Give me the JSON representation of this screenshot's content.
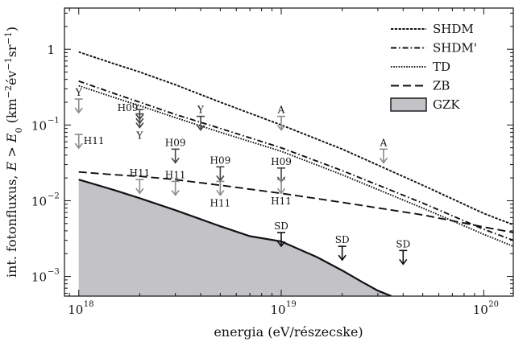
{
  "chart_data": {
    "type": "line",
    "xlabel": "energia (eV/részecske)",
    "ylabel": "int. fotonfluxus, E > E₀ (km⁻²év⁻¹sr⁻¹)",
    "x_scale": "log",
    "y_scale": "log",
    "xlim": [
      8.5e+17,
      1.4e+20
    ],
    "ylim": [
      0.00055,
      3.5
    ],
    "x_ticks": [
      {
        "value": 1e+18,
        "mantissa": "10",
        "exp": "18"
      },
      {
        "value": 1e+19,
        "mantissa": "10",
        "exp": "19"
      },
      {
        "value": 1e+20,
        "mantissa": "10",
        "exp": "20"
      }
    ],
    "y_ticks": [
      {
        "value": 1,
        "label": "1"
      },
      {
        "value": 0.1,
        "label": "10",
        "exp": "−1"
      },
      {
        "value": 0.01,
        "label": "10",
        "exp": "−2"
      },
      {
        "value": 0.001,
        "label": "10",
        "exp": "−3"
      }
    ],
    "legend_position": "top-right",
    "series": [
      {
        "name": "SHDM",
        "style": "dotted-dense",
        "x": [
          1e+18,
          1.5e+18,
          2e+18,
          3e+18,
          5e+18,
          1e+19,
          2e+19,
          5e+19,
          1e+20,
          1.4e+20
        ],
        "y": [
          0.92,
          0.64,
          0.5,
          0.34,
          0.2,
          0.1,
          0.048,
          0.016,
          0.0068,
          0.0048
        ]
      },
      {
        "name": "SHDM'",
        "style": "dashdot",
        "x": [
          1e+18,
          1.5e+18,
          2e+18,
          3e+18,
          5e+18,
          1e+19,
          2e+19,
          5e+19,
          1e+20,
          1.4e+20
        ],
        "y": [
          0.38,
          0.26,
          0.2,
          0.138,
          0.09,
          0.05,
          0.025,
          0.0093,
          0.0042,
          0.003
        ]
      },
      {
        "name": "TD",
        "style": "dotted",
        "x": [
          1e+18,
          1.5e+18,
          2e+18,
          3e+18,
          5e+18,
          1e+19,
          2e+19,
          5e+19,
          1e+20,
          1.4e+20
        ],
        "y": [
          0.33,
          0.23,
          0.18,
          0.125,
          0.08,
          0.045,
          0.022,
          0.008,
          0.0036,
          0.0025
        ]
      },
      {
        "name": "ZB",
        "style": "dashed",
        "x": [
          1e+18,
          1.5e+18,
          2e+18,
          3e+18,
          5e+18,
          1e+19,
          2e+19,
          5e+19,
          1e+20,
          1.4e+20
        ],
        "y": [
          0.024,
          0.022,
          0.021,
          0.019,
          0.016,
          0.0125,
          0.0095,
          0.0065,
          0.0045,
          0.0038
        ]
      },
      {
        "name": "GZK",
        "style": "filled",
        "x": [
          1e+18,
          1.5e+18,
          2e+18,
          3e+18,
          5e+18,
          7e+18,
          1e+19,
          1.5e+19,
          2e+19,
          2.5e+19,
          3e+19,
          3.5e+19
        ],
        "y": [
          0.019,
          0.0138,
          0.0108,
          0.0075,
          0.0046,
          0.0034,
          0.0029,
          0.0018,
          0.0012,
          0.00085,
          0.00065,
          0.00055
        ]
      }
    ],
    "upper_limits": [
      {
        "label": "Y",
        "x": 1e+18,
        "y": 0.22,
        "label_pos": "above",
        "color": "#8a8a8a",
        "double": false
      },
      {
        "label": "H11",
        "x": 1e+18,
        "y": 0.075,
        "label_pos": "right",
        "color": "#8a8a8a",
        "double": false
      },
      {
        "label": "H09",
        "x": 2e+18,
        "y": 0.16,
        "label_pos": "left",
        "color": "#444444",
        "double": true
      },
      {
        "label": "Y",
        "x": 2e+18,
        "y": 0.14,
        "label_pos": "below",
        "color": "#444444",
        "double": false
      },
      {
        "label": "H11",
        "x": 2e+18,
        "y": 0.019,
        "label_pos": "above",
        "color": "#8a8a8a",
        "double": false
      },
      {
        "label": "H09",
        "x": 3e+18,
        "y": 0.048,
        "label_pos": "above",
        "color": "#444444",
        "double": false
      },
      {
        "label": "H11",
        "x": 3e+18,
        "y": 0.018,
        "label_pos": "above",
        "color": "#8a8a8a",
        "double": false
      },
      {
        "label": "Y",
        "x": 4e+18,
        "y": 0.13,
        "label_pos": "above",
        "color": "#444444",
        "double": false
      },
      {
        "label": "H09",
        "x": 5e+18,
        "y": 0.028,
        "label_pos": "above",
        "color": "#444444",
        "double": false
      },
      {
        "label": "H11",
        "x": 5e+18,
        "y": 0.018,
        "label_pos": "below",
        "color": "#8a8a8a",
        "double": false
      },
      {
        "label": "H09",
        "x": 1e+19,
        "y": 0.027,
        "label_pos": "above",
        "color": "#444444",
        "double": false
      },
      {
        "label": "H11",
        "x": 1e+19,
        "y": 0.019,
        "label_pos": "below",
        "color": "#8a8a8a",
        "double": false
      },
      {
        "label": "A",
        "x": 1e+19,
        "y": 0.13,
        "label_pos": "above",
        "color": "#8a8a8a",
        "double": false
      },
      {
        "label": "A",
        "x": 3.2e+19,
        "y": 0.048,
        "label_pos": "above",
        "color": "#8a8a8a",
        "double": false
      },
      {
        "label": "SD",
        "x": 1e+19,
        "y": 0.0038,
        "label_pos": "above",
        "color": "#111111",
        "double": false
      },
      {
        "label": "SD",
        "x": 2e+19,
        "y": 0.0025,
        "label_pos": "above",
        "color": "#111111",
        "double": false
      },
      {
        "label": "SD",
        "x": 4e+19,
        "y": 0.0022,
        "label_pos": "above",
        "color": "#111111",
        "double": false
      }
    ],
    "colors": {
      "line": "#111111",
      "gzk_fill": "#c3c3c7",
      "limit_dark": "#444444",
      "limit_light": "#8a8a8a"
    }
  }
}
